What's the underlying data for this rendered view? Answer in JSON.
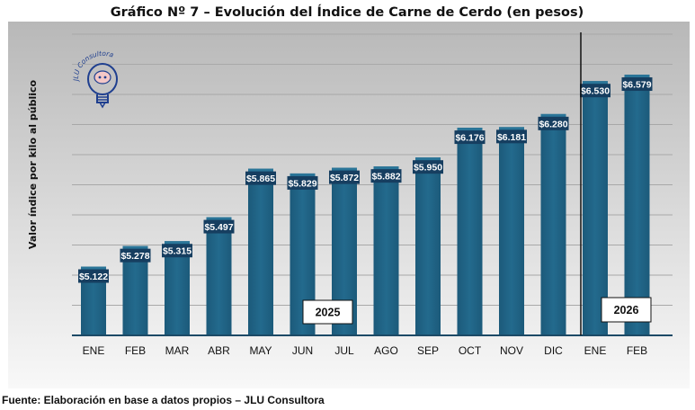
{
  "chart_data": {
    "type": "bar",
    "title": "Gráfico Nº 7 – Evolución del Índice de Carne de Cerdo (en pesos)",
    "xlabel": "",
    "ylabel": "Valor índice por kilo al público",
    "categories": [
      "ENE",
      "FEB",
      "MAR",
      "ABR",
      "MAY",
      "JUN",
      "JUL",
      "AGO",
      "SEP",
      "OCT",
      "NOV",
      "DIC",
      "ENE",
      "FEB"
    ],
    "values": [
      5122,
      5278,
      5315,
      5497,
      5865,
      5829,
      5872,
      5882,
      5950,
      6176,
      6181,
      6280,
      6530,
      6579
    ],
    "value_labels": [
      "$5.122",
      "$5.278",
      "$5.315",
      "$5.497",
      "$5.865",
      "$5.829",
      "$5.872",
      "$5.882",
      "$5.950",
      "$6.176",
      "$6.181",
      "$6.280",
      "$6.530",
      "$6.579"
    ],
    "ylim": [
      4600,
      6900
    ],
    "grid": true,
    "year_groups": [
      {
        "label": "2025",
        "start_index": 0,
        "end_index": 11
      },
      {
        "label": "2026",
        "start_index": 12,
        "end_index": 13
      }
    ],
    "source": "Fuente: Elaboración en base a datos propios – JLU Consultora",
    "logo_text": "JLU Consultora",
    "colors": {
      "bar": "#1f5f80",
      "bar_top": "#2a7598",
      "label_box": "#163e60",
      "plot_bg_top": "#bdbdbd",
      "plot_bg_bottom": "#f7f7f7",
      "divider": "#111111"
    }
  }
}
